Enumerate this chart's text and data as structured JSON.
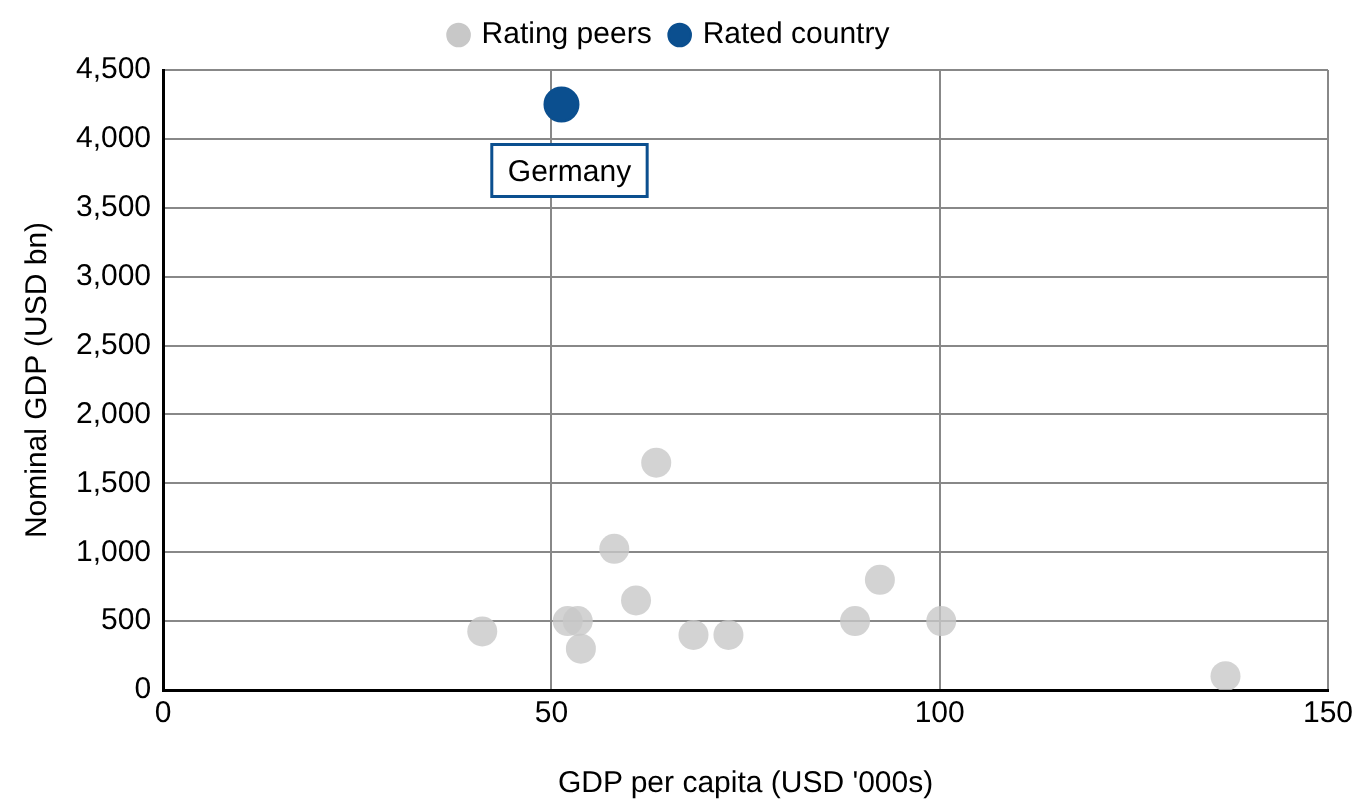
{
  "chart_data": {
    "type": "scatter",
    "xlabel": "GDP per capita (USD '000s)",
    "ylabel": "Nominal GDP (USD bn)",
    "xlim": [
      0,
      150
    ],
    "xticks": [
      0,
      50,
      100,
      150
    ],
    "ylim": [
      0,
      4500
    ],
    "yticks": [
      0,
      500,
      {
        "value": 1000,
        "label": "1,000"
      },
      {
        "value": 1500,
        "label": "1,500"
      },
      {
        "value": 2000,
        "label": "2,000"
      },
      {
        "value": 2500,
        "label": "2,500"
      },
      {
        "value": 3000,
        "label": "3,000"
      },
      {
        "value": 3500,
        "label": "3,500"
      },
      {
        "value": 4000,
        "label": "4,000"
      },
      {
        "value": 4500,
        "label": "4,500"
      }
    ],
    "grid": true,
    "legend": "top",
    "marker": "circle",
    "series": [
      {
        "name": "Rating peers",
        "color": "#c8c8c8",
        "x": [
          41.1,
          52.1,
          53.4,
          53.8,
          58.1,
          63.5,
          60.9,
          68.3,
          72.8,
          89.1,
          92.3,
          100.2,
          136.8
        ],
        "values": [
          425,
          500,
          500,
          300,
          1025,
          1650,
          650,
          400,
          400,
          500,
          800,
          500,
          100
        ]
      },
      {
        "name": "Rated country",
        "color": "#0b4f8f",
        "x": [
          51.3
        ],
        "values": [
          4250
        ]
      }
    ],
    "annotations": [
      {
        "text": "Germany",
        "x": 51.3,
        "y": 4250
      }
    ]
  }
}
